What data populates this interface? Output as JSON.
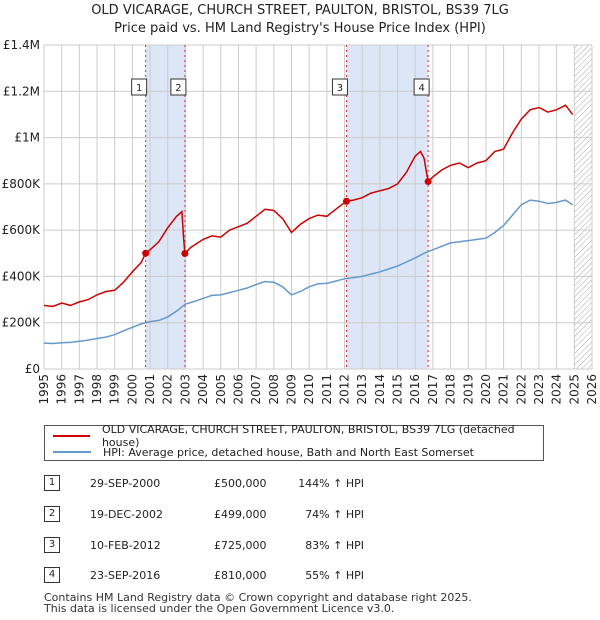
{
  "title_line1": "OLD VICARAGE, CHURCH STREET, PAULTON, BRISTOL, BS39 7LG",
  "title_line2": "Price paid vs. HM Land Registry's House Price Index (HPI)",
  "colors": {
    "red": "#cc0000",
    "blue": "#6699cc",
    "shade": "#dde6f6",
    "grid": "#cccccc",
    "vline": "#cc3333"
  },
  "chart_data": {
    "type": "line",
    "x_range": [
      1995,
      2026
    ],
    "ylim": [
      0,
      1400000
    ],
    "y_ticks": [
      {
        "value": 0,
        "label": "£0"
      },
      {
        "value": 200000,
        "label": "£200K"
      },
      {
        "value": 400000,
        "label": "£400K"
      },
      {
        "value": 600000,
        "label": "£600K"
      },
      {
        "value": 800000,
        "label": "£800K"
      },
      {
        "value": 1000000,
        "label": "£1M"
      },
      {
        "value": 1200000,
        "label": "£1.2M"
      },
      {
        "value": 1400000,
        "label": "£1.4M"
      }
    ],
    "x_ticks": [
      "1995",
      "1996",
      "1997",
      "1998",
      "1999",
      "2000",
      "2001",
      "2002",
      "2003",
      "2004",
      "2005",
      "2006",
      "2007",
      "2008",
      "2009",
      "2010",
      "2011",
      "2012",
      "2013",
      "2014",
      "2015",
      "2016",
      "2017",
      "2018",
      "2019",
      "2020",
      "2021",
      "2022",
      "2023",
      "2024",
      "2025",
      "2026"
    ],
    "shaded_ranges": [
      [
        2000.75,
        2002.97
      ],
      [
        2012.11,
        2016.73
      ]
    ],
    "hatch_from": 2025.0,
    "series": [
      {
        "name": "OLD VICARAGE, CHURCH STREET, PAULTON, BRISTOL, BS39 7LG (detached house)",
        "color": "#cc0000",
        "points": [
          [
            1995.0,
            275000
          ],
          [
            1995.5,
            270000
          ],
          [
            1996.0,
            285000
          ],
          [
            1996.5,
            275000
          ],
          [
            1997.0,
            290000
          ],
          [
            1997.5,
            300000
          ],
          [
            1998.0,
            320000
          ],
          [
            1998.5,
            335000
          ],
          [
            1999.0,
            340000
          ],
          [
            1999.5,
            375000
          ],
          [
            2000.0,
            420000
          ],
          [
            2000.5,
            460000
          ],
          [
            2000.75,
            500000
          ],
          [
            2001.0,
            515000
          ],
          [
            2001.5,
            550000
          ],
          [
            2002.0,
            610000
          ],
          [
            2002.5,
            660000
          ],
          [
            2002.8,
            680000
          ],
          [
            2002.9,
            560000
          ],
          [
            2002.97,
            499000
          ],
          [
            2003.3,
            525000
          ],
          [
            2004.0,
            560000
          ],
          [
            2004.5,
            575000
          ],
          [
            2005.0,
            570000
          ],
          [
            2005.5,
            600000
          ],
          [
            2006.0,
            615000
          ],
          [
            2006.5,
            630000
          ],
          [
            2007.0,
            660000
          ],
          [
            2007.5,
            690000
          ],
          [
            2008.0,
            685000
          ],
          [
            2008.5,
            650000
          ],
          [
            2009.0,
            590000
          ],
          [
            2009.5,
            625000
          ],
          [
            2010.0,
            650000
          ],
          [
            2010.5,
            665000
          ],
          [
            2011.0,
            660000
          ],
          [
            2011.5,
            690000
          ],
          [
            2012.11,
            725000
          ],
          [
            2012.5,
            730000
          ],
          [
            2013.0,
            740000
          ],
          [
            2013.5,
            760000
          ],
          [
            2014.0,
            770000
          ],
          [
            2014.5,
            780000
          ],
          [
            2015.0,
            800000
          ],
          [
            2015.5,
            850000
          ],
          [
            2016.0,
            920000
          ],
          [
            2016.3,
            940000
          ],
          [
            2016.5,
            910000
          ],
          [
            2016.73,
            810000
          ],
          [
            2017.0,
            830000
          ],
          [
            2017.5,
            860000
          ],
          [
            2018.0,
            880000
          ],
          [
            2018.5,
            890000
          ],
          [
            2019.0,
            870000
          ],
          [
            2019.5,
            890000
          ],
          [
            2020.0,
            900000
          ],
          [
            2020.5,
            940000
          ],
          [
            2021.0,
            950000
          ],
          [
            2021.5,
            1020000
          ],
          [
            2022.0,
            1080000
          ],
          [
            2022.5,
            1120000
          ],
          [
            2023.0,
            1130000
          ],
          [
            2023.5,
            1110000
          ],
          [
            2024.0,
            1120000
          ],
          [
            2024.5,
            1140000
          ],
          [
            2024.9,
            1100000
          ]
        ]
      },
      {
        "name": "HPI: Average price, detached house, Bath and North East Somerset",
        "color": "#6699cc",
        "points": [
          [
            1995.0,
            112000
          ],
          [
            1995.5,
            110000
          ],
          [
            1996.0,
            113000
          ],
          [
            1996.5,
            115000
          ],
          [
            1997.0,
            120000
          ],
          [
            1997.5,
            125000
          ],
          [
            1998.0,
            132000
          ],
          [
            1998.5,
            138000
          ],
          [
            1999.0,
            148000
          ],
          [
            1999.5,
            165000
          ],
          [
            2000.0,
            180000
          ],
          [
            2000.5,
            195000
          ],
          [
            2001.0,
            205000
          ],
          [
            2001.5,
            210000
          ],
          [
            2002.0,
            225000
          ],
          [
            2002.5,
            250000
          ],
          [
            2003.0,
            280000
          ],
          [
            2003.5,
            292000
          ],
          [
            2004.0,
            305000
          ],
          [
            2004.5,
            318000
          ],
          [
            2005.0,
            320000
          ],
          [
            2005.5,
            330000
          ],
          [
            2006.0,
            340000
          ],
          [
            2006.5,
            350000
          ],
          [
            2007.0,
            365000
          ],
          [
            2007.5,
            378000
          ],
          [
            2008.0,
            375000
          ],
          [
            2008.5,
            355000
          ],
          [
            2009.0,
            320000
          ],
          [
            2009.5,
            335000
          ],
          [
            2010.0,
            355000
          ],
          [
            2010.5,
            368000
          ],
          [
            2011.0,
            370000
          ],
          [
            2011.5,
            380000
          ],
          [
            2012.0,
            390000
          ],
          [
            2012.5,
            395000
          ],
          [
            2013.0,
            400000
          ],
          [
            2013.5,
            410000
          ],
          [
            2014.0,
            420000
          ],
          [
            2014.5,
            432000
          ],
          [
            2015.0,
            445000
          ],
          [
            2015.5,
            462000
          ],
          [
            2016.0,
            480000
          ],
          [
            2016.5,
            500000
          ],
          [
            2017.0,
            515000
          ],
          [
            2017.5,
            530000
          ],
          [
            2018.0,
            545000
          ],
          [
            2018.5,
            550000
          ],
          [
            2019.0,
            555000
          ],
          [
            2019.5,
            560000
          ],
          [
            2020.0,
            565000
          ],
          [
            2020.5,
            590000
          ],
          [
            2021.0,
            620000
          ],
          [
            2021.5,
            665000
          ],
          [
            2022.0,
            710000
          ],
          [
            2022.5,
            730000
          ],
          [
            2023.0,
            725000
          ],
          [
            2023.5,
            715000
          ],
          [
            2024.0,
            720000
          ],
          [
            2024.5,
            730000
          ],
          [
            2024.9,
            710000
          ]
        ]
      }
    ],
    "transactions": [
      {
        "num": "1",
        "x": 2000.75,
        "price": 500000
      },
      {
        "num": "2",
        "x": 2002.97,
        "price": 499000
      },
      {
        "num": "3",
        "x": 2012.11,
        "price": 725000
      },
      {
        "num": "4",
        "x": 2016.73,
        "price": 810000
      }
    ]
  },
  "legend": {
    "red_label": "OLD VICARAGE, CHURCH STREET, PAULTON, BRISTOL, BS39 7LG (detached house)",
    "blue_label": "HPI: Average price, detached house, Bath and North East Somerset"
  },
  "table": [
    {
      "num": "1",
      "date": "29-SEP-2000",
      "price": "£500,000",
      "hpi": "144% ↑ HPI"
    },
    {
      "num": "2",
      "date": "19-DEC-2002",
      "price": "£499,000",
      "hpi": "74% ↑ HPI"
    },
    {
      "num": "3",
      "date": "10-FEB-2012",
      "price": "£725,000",
      "hpi": "83% ↑ HPI"
    },
    {
      "num": "4",
      "date": "23-SEP-2016",
      "price": "£810,000",
      "hpi": "55% ↑ HPI"
    }
  ],
  "footer_line1": "Contains HM Land Registry data © Crown copyright and database right 2025.",
  "footer_line2": "This data is licensed under the Open Government Licence v3.0."
}
